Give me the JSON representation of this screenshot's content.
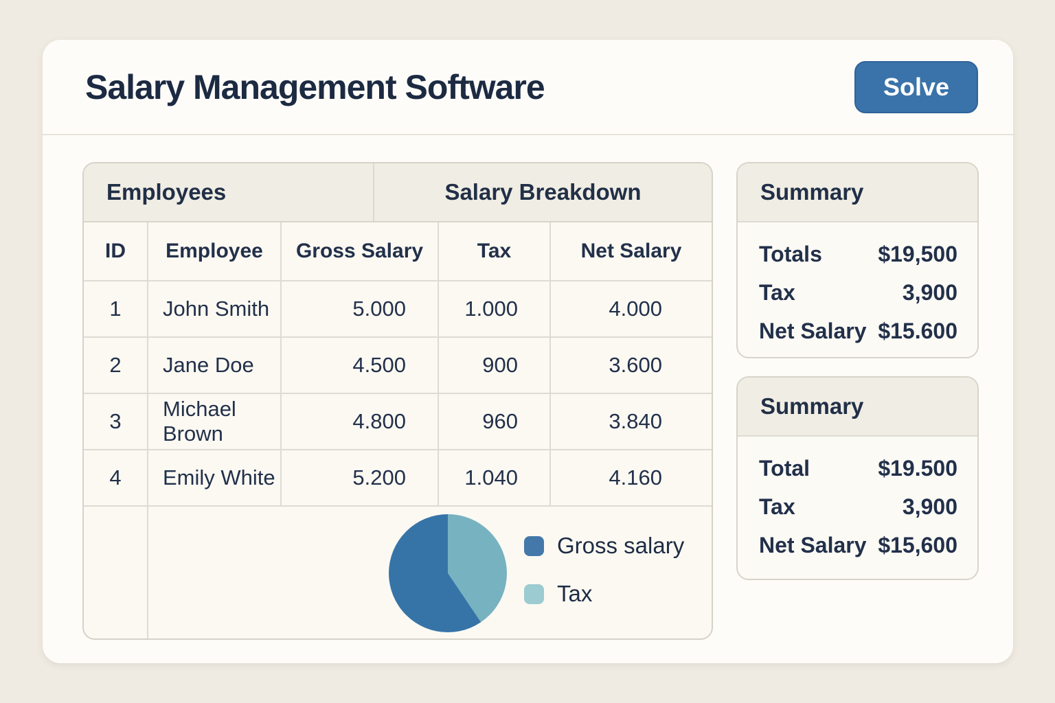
{
  "header": {
    "title": "Salary Management Software",
    "solve_button": "Solve"
  },
  "table": {
    "group_headers": [
      "Employees",
      "Salary Breakdown"
    ],
    "columns": [
      "ID",
      "Employee",
      "Gross Salary",
      "Tax",
      "Net Salary"
    ],
    "rows": [
      {
        "id": "1",
        "employee": "John Smith",
        "gross": "5.000",
        "tax": "1.000",
        "net": "4.000"
      },
      {
        "id": "2",
        "employee": "Jane Doe",
        "gross": "4.500",
        "tax": "900",
        "net": "3.600"
      },
      {
        "id": "3",
        "employee": "Michael Brown",
        "gross": "4.800",
        "tax": "960",
        "net": "3.840"
      },
      {
        "id": "4",
        "employee": "Emily White",
        "gross": "5.200",
        "tax": "1.040",
        "net": "4.160"
      }
    ]
  },
  "chart_data": {
    "type": "pie",
    "legend": [
      {
        "label": "Gross salary",
        "color": "#4478aa"
      },
      {
        "label": "Tax",
        "color": "#9ccbd1"
      }
    ],
    "slices": [
      {
        "label": "Tax",
        "color": "#77b2c1",
        "start_deg": 0,
        "end_deg": 146,
        "fraction": 0.41
      },
      {
        "label": "Gross salary",
        "color": "#3674a8",
        "start_deg": 146,
        "end_deg": 360,
        "fraction": 0.59
      }
    ],
    "legend_position": "right"
  },
  "summaries": [
    {
      "title": "Summary",
      "rows": [
        {
          "label": "Totals",
          "value": "$19,500"
        },
        {
          "label": "Tax",
          "value": "3,900"
        },
        {
          "label": "Net Salary",
          "value": "$15.600"
        }
      ]
    },
    {
      "title": "Summary",
      "rows": [
        {
          "label": "Total",
          "value": "$19.500"
        },
        {
          "label": "Tax",
          "value": "3,900"
        },
        {
          "label": "Net Salary",
          "value": "$15,600"
        }
      ]
    }
  ],
  "colors": {
    "accent_button": "#3a73a9",
    "pie_gross": "#3674a8",
    "pie_tax": "#77b2c1"
  }
}
